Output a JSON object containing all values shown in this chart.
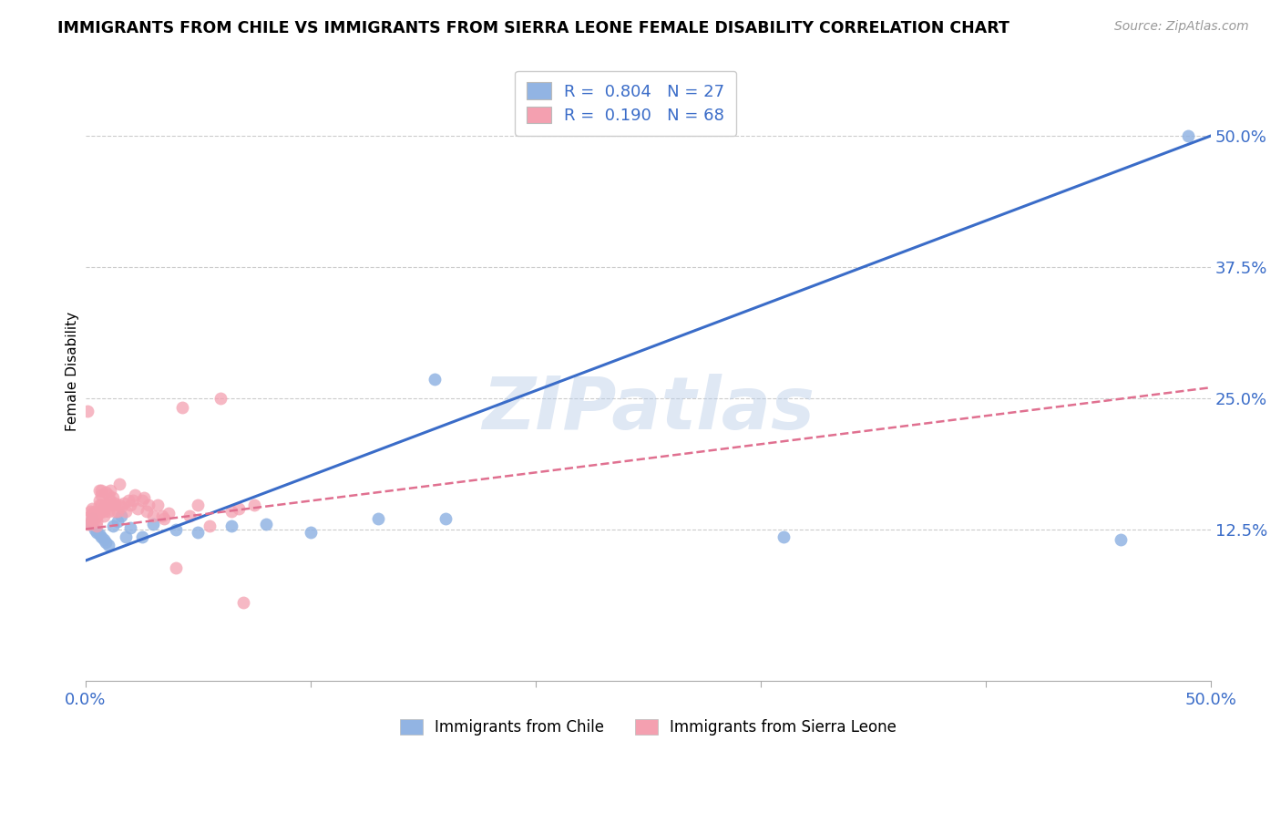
{
  "title": "IMMIGRANTS FROM CHILE VS IMMIGRANTS FROM SIERRA LEONE FEMALE DISABILITY CORRELATION CHART",
  "source": "Source: ZipAtlas.com",
  "ylabel": "Female Disability",
  "xlim": [
    0.0,
    0.5
  ],
  "ylim": [
    -0.02,
    0.57
  ],
  "yticks": [
    0.0,
    0.125,
    0.25,
    0.375,
    0.5
  ],
  "ytick_labels": [
    "",
    "12.5%",
    "25.0%",
    "37.5%",
    "50.0%"
  ],
  "xticks": [
    0.0,
    0.1,
    0.2,
    0.3,
    0.4,
    0.5
  ],
  "xtick_labels": [
    "0.0%",
    "",
    "",
    "",
    "",
    "50.0%"
  ],
  "chile_color": "#92b4e3",
  "sierra_leone_color": "#f4a0b0",
  "chile_R": 0.804,
  "chile_N": 27,
  "sierra_leone_R": 0.19,
  "sierra_leone_N": 68,
  "chile_line_color": "#3a6cc8",
  "sierra_leone_line_color": "#e07090",
  "legend_R_color": "#3a6cc8",
  "watermark": "ZIPatlas",
  "chile_line_x0": 0.0,
  "chile_line_y0": 0.095,
  "chile_line_x1": 0.5,
  "chile_line_y1": 0.5,
  "sierra_line_x0": 0.0,
  "sierra_line_y0": 0.125,
  "sierra_line_x1": 0.5,
  "sierra_line_y1": 0.26,
  "chile_x": [
    0.002,
    0.003,
    0.004,
    0.005,
    0.006,
    0.007,
    0.008,
    0.009,
    0.01,
    0.012,
    0.014,
    0.016,
    0.018,
    0.02,
    0.025,
    0.03,
    0.04,
    0.05,
    0.065,
    0.08,
    0.1,
    0.13,
    0.155,
    0.16,
    0.31,
    0.46,
    0.49
  ],
  "chile_y": [
    0.13,
    0.135,
    0.125,
    0.122,
    0.12,
    0.118,
    0.115,
    0.112,
    0.11,
    0.128,
    0.132,
    0.138,
    0.118,
    0.126,
    0.118,
    0.13,
    0.125,
    0.122,
    0.128,
    0.13,
    0.122,
    0.135,
    0.268,
    0.135,
    0.118,
    0.115,
    0.5
  ],
  "sierra_leone_x": [
    0.001,
    0.001,
    0.002,
    0.002,
    0.002,
    0.003,
    0.003,
    0.003,
    0.003,
    0.004,
    0.004,
    0.004,
    0.004,
    0.005,
    0.005,
    0.005,
    0.005,
    0.006,
    0.006,
    0.006,
    0.006,
    0.007,
    0.007,
    0.007,
    0.008,
    0.008,
    0.008,
    0.009,
    0.009,
    0.01,
    0.01,
    0.01,
    0.011,
    0.011,
    0.012,
    0.012,
    0.013,
    0.013,
    0.014,
    0.015,
    0.015,
    0.016,
    0.017,
    0.018,
    0.019,
    0.02,
    0.021,
    0.022,
    0.023,
    0.025,
    0.026,
    0.027,
    0.028,
    0.03,
    0.032,
    0.034,
    0.035,
    0.037,
    0.04,
    0.043,
    0.046,
    0.05,
    0.055,
    0.06,
    0.065,
    0.068,
    0.07,
    0.075
  ],
  "sierra_leone_y": [
    0.13,
    0.238,
    0.138,
    0.142,
    0.13,
    0.132,
    0.14,
    0.135,
    0.145,
    0.135,
    0.138,
    0.14,
    0.142,
    0.132,
    0.138,
    0.128,
    0.14,
    0.148,
    0.162,
    0.152,
    0.14,
    0.158,
    0.162,
    0.148,
    0.142,
    0.138,
    0.145,
    0.148,
    0.16,
    0.142,
    0.148,
    0.158,
    0.152,
    0.162,
    0.148,
    0.155,
    0.142,
    0.15,
    0.142,
    0.148,
    0.168,
    0.146,
    0.15,
    0.142,
    0.152,
    0.148,
    0.152,
    0.158,
    0.145,
    0.152,
    0.155,
    0.142,
    0.148,
    0.138,
    0.148,
    0.138,
    0.135,
    0.14,
    0.088,
    0.241,
    0.138,
    0.148,
    0.128,
    0.25,
    0.142,
    0.145,
    0.055,
    0.148
  ]
}
